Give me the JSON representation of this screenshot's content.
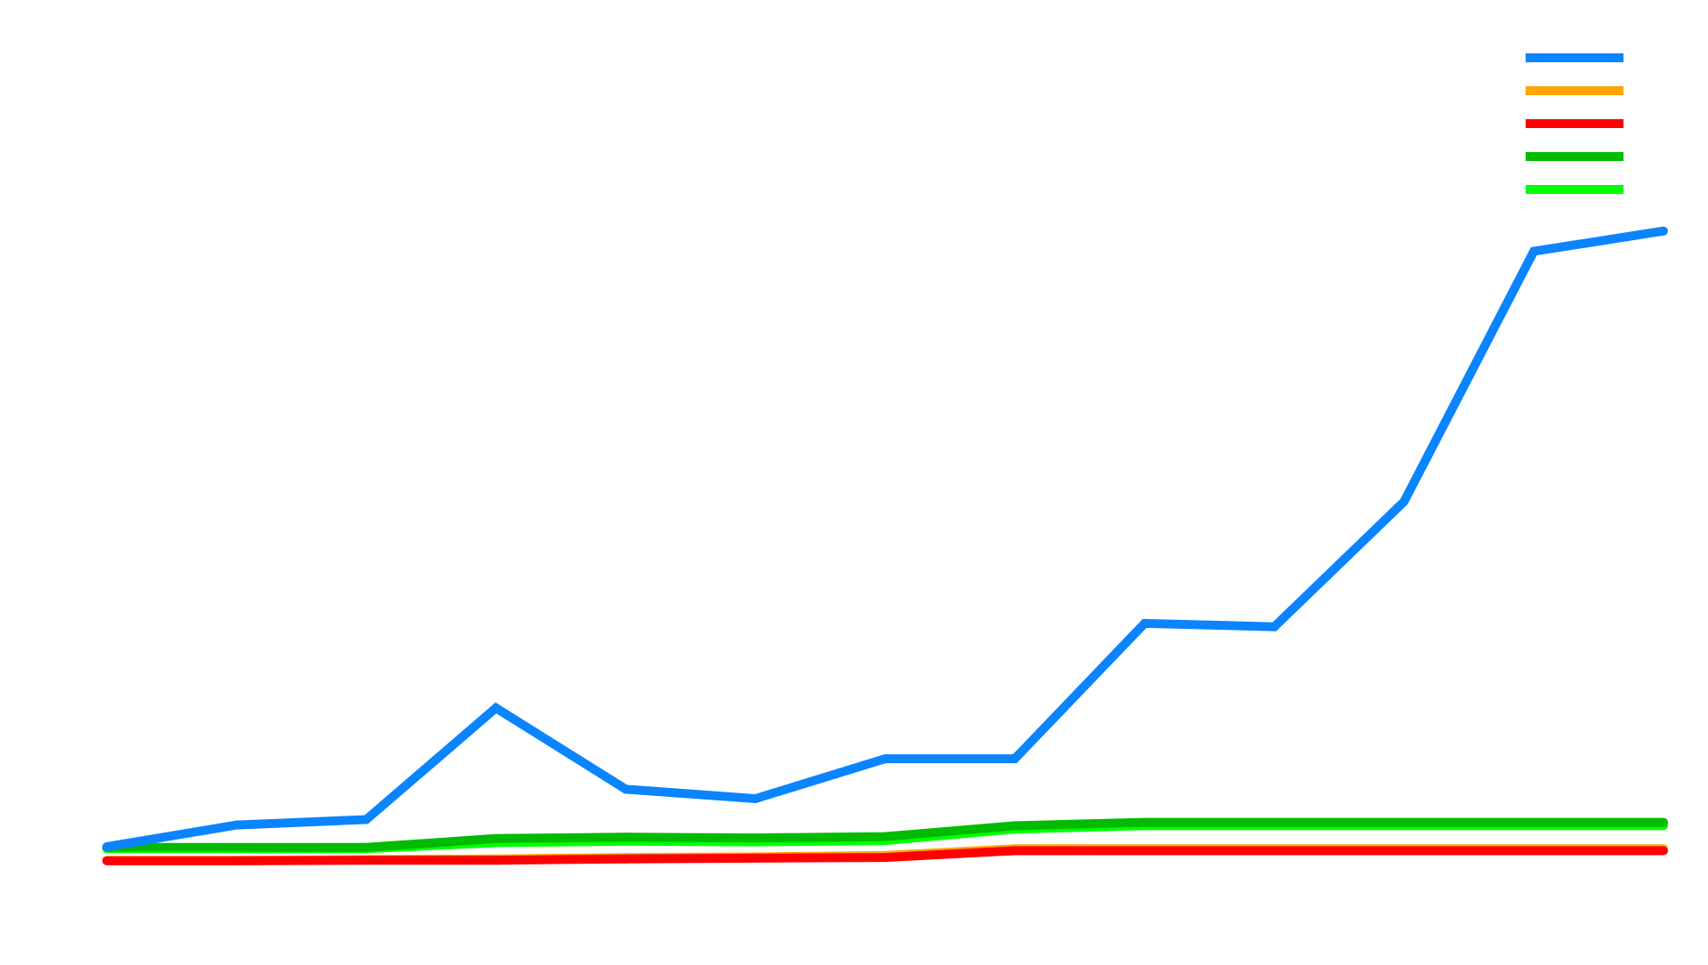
{
  "chart_data": {
    "type": "line",
    "x": [
      1,
      2,
      3,
      4,
      5,
      6,
      7,
      8,
      9,
      10,
      11,
      12,
      13
    ],
    "ylim": [
      -0.05,
      1.12
    ],
    "grid": false,
    "legend_position": "top-right",
    "series": [
      {
        "color": "#0a84ff",
        "values": [
          0.0,
          0.032,
          0.04,
          0.205,
          0.085,
          0.071,
          0.13,
          0.13,
          0.33,
          0.325,
          0.51,
          0.88,
          0.91
        ]
      },
      {
        "color": "#ffa500",
        "values": [
          -0.02,
          -0.02,
          -0.019,
          -0.018,
          -0.016,
          -0.015,
          -0.013,
          -0.003,
          -0.003,
          -0.003,
          -0.003,
          -0.003,
          -0.003
        ]
      },
      {
        "color": "#ff0000",
        "values": [
          -0.021,
          -0.021,
          -0.02,
          -0.02,
          -0.018,
          -0.017,
          -0.016,
          -0.006,
          -0.006,
          -0.006,
          -0.006,
          -0.006,
          -0.006
        ]
      },
      {
        "color": "#00bb00",
        "values": [
          -0.001,
          -0.001,
          -0.001,
          0.012,
          0.014,
          0.013,
          0.015,
          0.031,
          0.036,
          0.036,
          0.036,
          0.036,
          0.036
        ]
      },
      {
        "color": "#00ff00",
        "values": [
          -0.003,
          -0.003,
          -0.003,
          0.006,
          0.008,
          0.007,
          0.009,
          0.026,
          0.031,
          0.031,
          0.031,
          0.031,
          0.031
        ]
      }
    ]
  }
}
